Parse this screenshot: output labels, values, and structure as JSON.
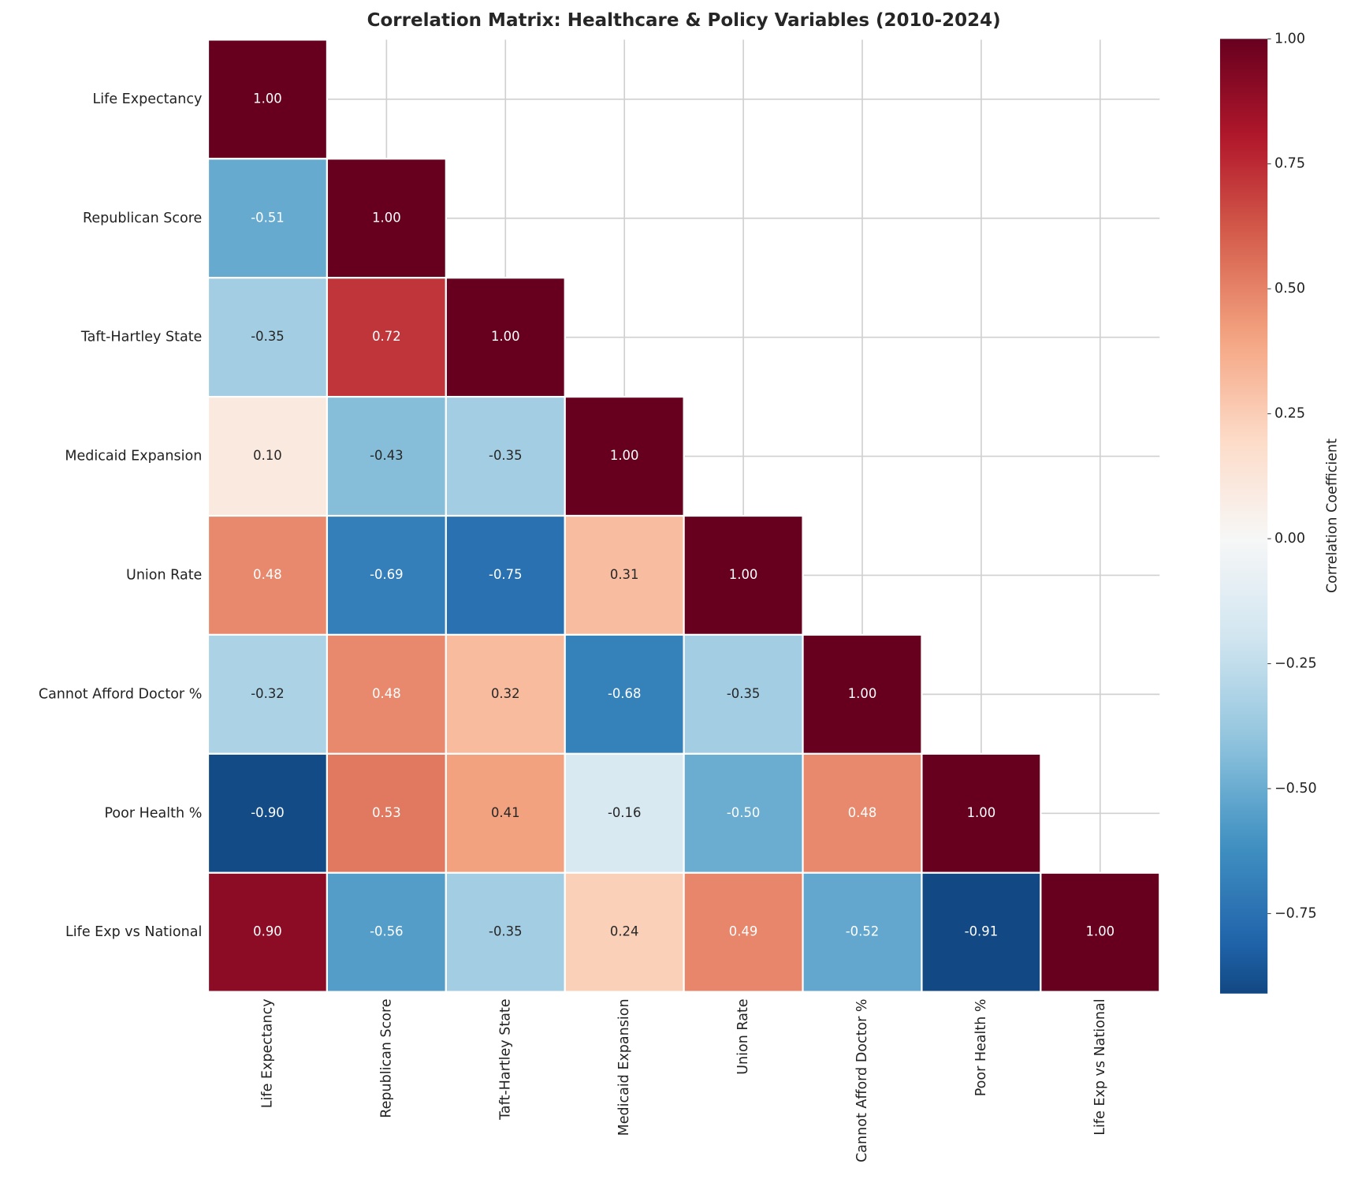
{
  "chart_data": {
    "type": "heatmap",
    "title": "Correlation Matrix: Healthcare & Policy Variables (2010-2024)",
    "categories": [
      "Life Expectancy",
      "Republican Score",
      "Taft-Hartley State",
      "Medicaid Expansion",
      "Union Rate",
      "Cannot Afford Doctor %",
      "Poor Health %",
      "Life Exp vs National"
    ],
    "values": [
      [
        1.0,
        null,
        null,
        null,
        null,
        null,
        null,
        null
      ],
      [
        -0.51,
        1.0,
        null,
        null,
        null,
        null,
        null,
        null
      ],
      [
        -0.35,
        0.72,
        1.0,
        null,
        null,
        null,
        null,
        null
      ],
      [
        0.1,
        -0.43,
        -0.35,
        1.0,
        null,
        null,
        null,
        null
      ],
      [
        0.48,
        -0.69,
        -0.75,
        0.31,
        1.0,
        null,
        null,
        null
      ],
      [
        -0.32,
        0.48,
        0.32,
        -0.68,
        -0.35,
        1.0,
        null,
        null
      ],
      [
        -0.9,
        0.53,
        0.41,
        -0.16,
        -0.5,
        0.48,
        1.0,
        null
      ],
      [
        0.9,
        -0.56,
        -0.35,
        0.24,
        0.49,
        -0.52,
        -0.91,
        1.0
      ]
    ],
    "value_labels": [
      [
        "1.00",
        null,
        null,
        null,
        null,
        null,
        null,
        null
      ],
      [
        "-0.51",
        "1.00",
        null,
        null,
        null,
        null,
        null,
        null
      ],
      [
        "-0.35",
        "0.72",
        "1.00",
        null,
        null,
        null,
        null,
        null
      ],
      [
        "0.10",
        "-0.43",
        "-0.35",
        "1.00",
        null,
        null,
        null,
        null
      ],
      [
        "0.48",
        "-0.69",
        "-0.75",
        "0.31",
        "1.00",
        null,
        null,
        null
      ],
      [
        "-0.32",
        "0.48",
        "0.32",
        "-0.68",
        "-0.35",
        "1.00",
        null,
        null
      ],
      [
        "-0.90",
        "0.53",
        "0.41",
        "-0.16",
        "-0.50",
        "0.48",
        "1.00",
        null
      ],
      [
        "0.90",
        "-0.56",
        "-0.35",
        "0.24",
        "0.49",
        "-0.52",
        "-0.91",
        "1.00"
      ]
    ],
    "colormap": [
      "#053061",
      "#2166ac",
      "#4393c3",
      "#92c5de",
      "#d1e5f0",
      "#f7f7f7",
      "#fddbc7",
      "#f4a582",
      "#d6604d",
      "#b2182b",
      "#67001f"
    ],
    "colorbar_label": "Correlation Coefficient",
    "clim": [
      -0.91,
      1.0
    ],
    "cticks": [
      {
        "value": -0.75,
        "label": "−0.75"
      },
      {
        "value": -0.5,
        "label": "−0.50"
      },
      {
        "value": -0.25,
        "label": "−0.25"
      },
      {
        "value": 0,
        "label": "0.00"
      },
      {
        "value": 0.25,
        "label": "0.25"
      },
      {
        "value": 0.5,
        "label": "0.50"
      },
      {
        "value": 0.75,
        "label": "0.75"
      },
      {
        "value": 1.0,
        "label": "1.00"
      }
    ],
    "grid": true
  }
}
